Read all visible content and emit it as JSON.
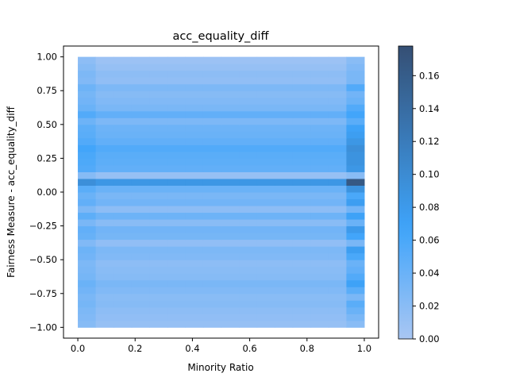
{
  "chart_data": {
    "type": "heatmap",
    "title": "acc_equality_diff",
    "xlabel": "Minority Ratio",
    "ylabel": "Fairness Measure - acc_equality_diff",
    "xlim": [
      -0.05,
      1.05
    ],
    "ylim": [
      -1.08,
      1.08
    ],
    "x_ticks": [
      0.0,
      0.2,
      0.4,
      0.6,
      0.8,
      1.0
    ],
    "x_tick_labels": [
      "0.0",
      "0.2",
      "0.4",
      "0.6",
      "0.8",
      "1.0"
    ],
    "y_ticks": [
      -1.0,
      -0.75,
      -0.5,
      -0.25,
      0.0,
      0.25,
      0.5,
      0.75,
      1.0
    ],
    "y_tick_labels": [
      "−1.00",
      "−0.75",
      "−0.50",
      "−0.25",
      "0.00",
      "0.25",
      "0.50",
      "0.75",
      "1.00"
    ],
    "colorbar": {
      "min": 0.0,
      "max": 0.178,
      "ticks": [
        0.0,
        0.02,
        0.04,
        0.06,
        0.08,
        0.1,
        0.12,
        0.14,
        0.16
      ],
      "tick_labels": [
        "0.00",
        "0.02",
        "0.04",
        "0.06",
        "0.08",
        "0.10",
        "0.12",
        "0.14",
        "0.16"
      ],
      "color_low": "#a9c6f3",
      "color_mid": "#3ea4fa",
      "color_high": "#354f74"
    },
    "x_bins": {
      "start": 0.0,
      "end": 1.0,
      "count": 16
    },
    "y_bins": {
      "start": -1.0,
      "end": 1.0,
      "count": 40
    },
    "row_values_y_ascending": [
      0.012,
      0.015,
      0.018,
      0.022,
      0.02,
      0.025,
      0.03,
      0.022,
      0.02,
      0.018,
      0.025,
      0.028,
      0.015,
      0.032,
      0.035,
      0.02,
      0.038,
      0.018,
      0.035,
      0.03,
      0.04,
      0.085,
      0.012,
      0.045,
      0.048,
      0.05,
      0.055,
      0.045,
      0.04,
      0.038,
      0.028,
      0.045,
      0.03,
      0.025,
      0.022,
      0.028,
      0.015,
      0.018,
      0.012,
      0.008
    ],
    "right_column_values_y_ascending": [
      0.02,
      0.03,
      0.04,
      0.05,
      0.03,
      0.05,
      0.07,
      0.055,
      0.045,
      0.04,
      0.06,
      0.075,
      0.03,
      0.065,
      0.08,
      0.04,
      0.07,
      0.035,
      0.075,
      0.06,
      0.09,
      0.165,
      0.02,
      0.085,
      0.09,
      0.09,
      0.095,
      0.085,
      0.075,
      0.07,
      0.05,
      0.065,
      0.055,
      0.04,
      0.035,
      0.055,
      0.03,
      0.03,
      0.025,
      0.02
    ],
    "left_column_boost": 0.01
  }
}
